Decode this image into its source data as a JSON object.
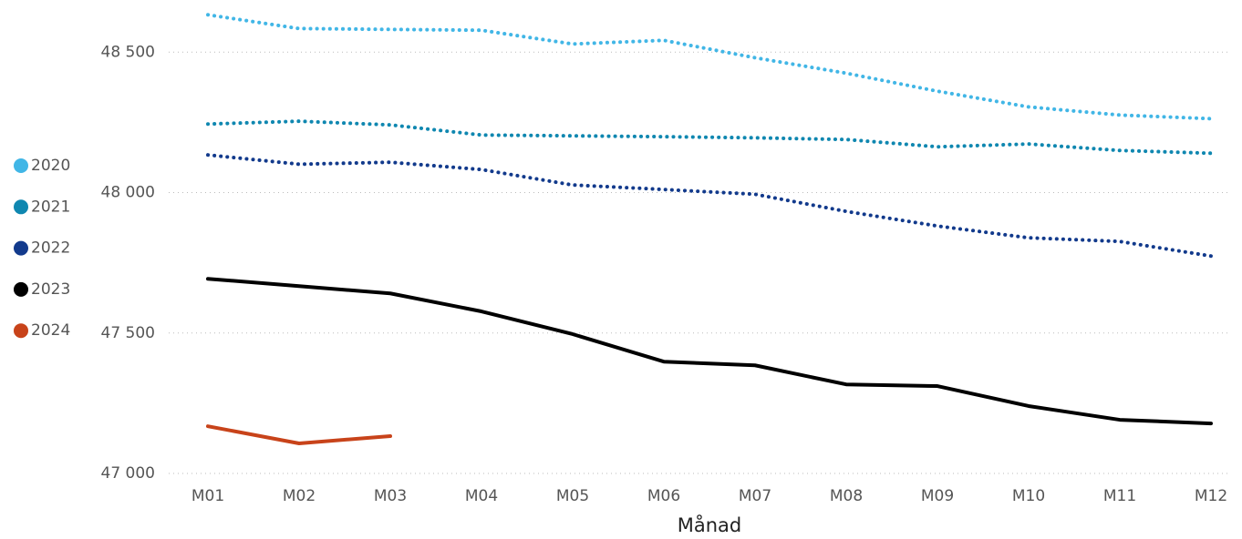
{
  "chart_data": {
    "type": "line",
    "x_label": "Månad",
    "categories": [
      "M01",
      "M02",
      "M03",
      "M04",
      "M05",
      "M06",
      "M07",
      "M08",
      "M09",
      "M10",
      "M11",
      "M12"
    ],
    "series": [
      {
        "name": "2020",
        "color": "#41b6e6",
        "style": "dotted",
        "values": [
          48633,
          48584,
          48581,
          48578,
          48529,
          48542,
          48480,
          48425,
          48361,
          48305,
          48276,
          48263
        ]
      },
      {
        "name": "2021",
        "color": "#0f87b0",
        "style": "dotted",
        "values": [
          48244,
          48254,
          48241,
          48205,
          48202,
          48199,
          48195,
          48189,
          48163,
          48173,
          48150,
          48140
        ]
      },
      {
        "name": "2022",
        "color": "#123a8c",
        "style": "dotted",
        "values": [
          48134,
          48101,
          48108,
          48082,
          48027,
          48011,
          47994,
          47933,
          47881,
          47839,
          47826,
          47774
        ]
      },
      {
        "name": "2023",
        "color": "#000000",
        "style": "solid",
        "values": [
          47693,
          47667,
          47641,
          47577,
          47496,
          47398,
          47385,
          47317,
          47311,
          47240,
          47191,
          47178
        ]
      },
      {
        "name": "2024",
        "color": "#c8431a",
        "style": "solid",
        "values": [
          47168,
          47107,
          47133,
          null,
          null,
          null,
          null,
          null,
          null,
          null,
          null,
          null
        ]
      }
    ],
    "ylim": [
      47000,
      48650
    ],
    "yticks": [
      {
        "value": 47000,
        "label": "47 000"
      },
      {
        "value": 47500,
        "label": "47 500"
      },
      {
        "value": 48000,
        "label": "48 000"
      },
      {
        "value": 48500,
        "label": "48 500"
      }
    ],
    "grid": true,
    "legend": "left"
  }
}
